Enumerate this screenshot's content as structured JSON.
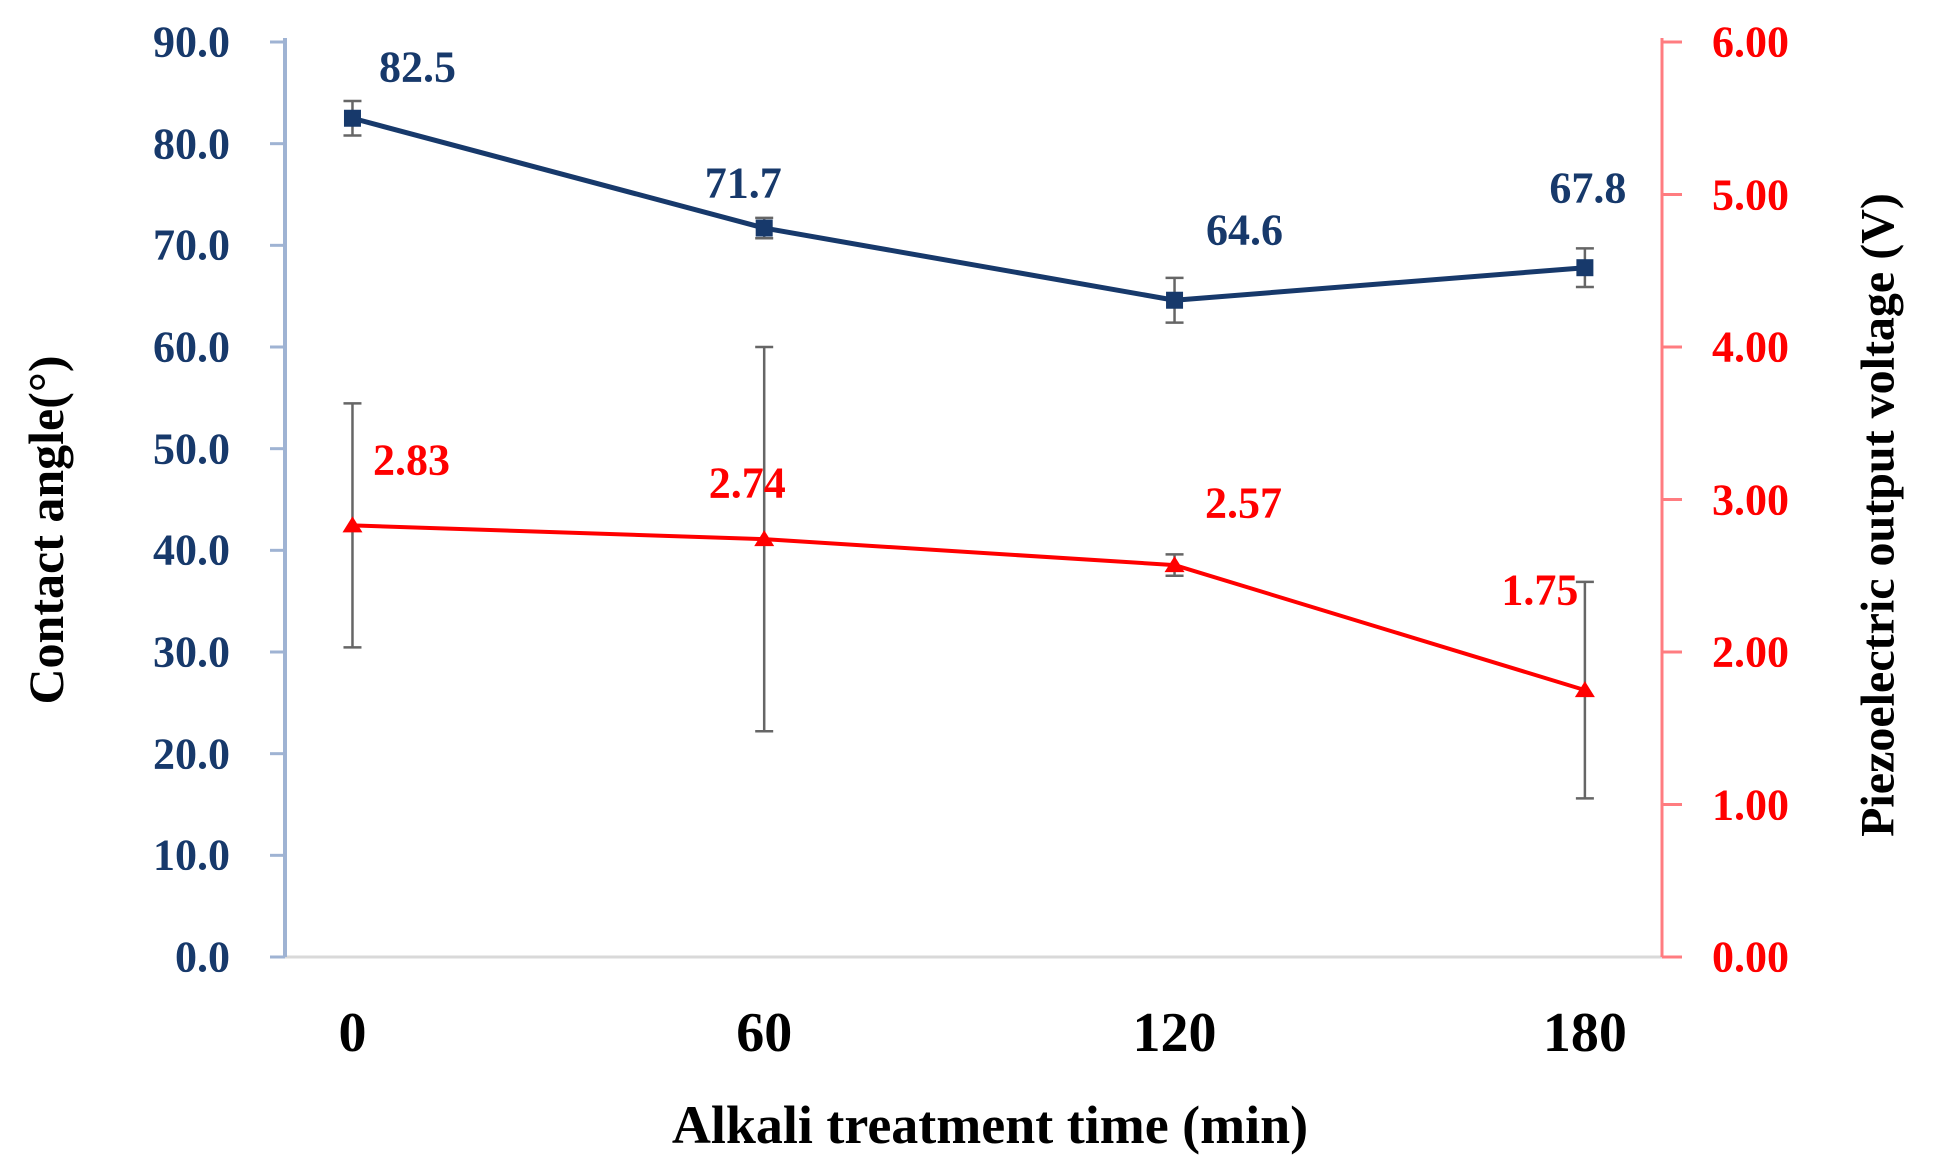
{
  "chart_data": {
    "type": "line",
    "xlabel": "Alkali treatment time (min)",
    "x_categories": [
      "0",
      "60",
      "120",
      "180"
    ],
    "grid": false,
    "legend": "none",
    "left_axis": {
      "label": "Contact angle(°)",
      "min": 0,
      "max": 90,
      "tick_labels": [
        "90.0",
        "80.0",
        "70.0",
        "60.0",
        "50.0",
        "40.0",
        "30.0",
        "20.0",
        "10.0",
        "0.0"
      ],
      "text_color": "#17396B",
      "line_color": "#9FB3D3"
    },
    "right_axis": {
      "label": "Piezoelectric output voltage (V)",
      "min": 0,
      "max": 6,
      "tick_labels": [
        "6.00",
        "5.00",
        "4.00",
        "3.00",
        "2.00",
        "1.00",
        "0.00"
      ],
      "text_color": "#FF0000",
      "line_color": "#FF7C80"
    },
    "x_axis_line_color": "#D9D9D9",
    "error_bar_color": "#666666",
    "series": [
      {
        "name": "Contact angle(°)",
        "axis": "left",
        "color": "#17396B",
        "marker": "square",
        "values": [
          82.5,
          71.7,
          64.6,
          67.8
        ],
        "errors": [
          1.7,
          1.0,
          2.2,
          1.9
        ],
        "labels": [
          "82.5",
          "71.7",
          "64.6",
          "67.8"
        ]
      },
      {
        "name": "Piezoelectric output voltage (V)",
        "axis": "right",
        "color": "#FF0000",
        "marker": "triangle",
        "values": [
          2.83,
          2.74,
          2.57,
          1.75
        ],
        "errors": [
          0.8,
          1.26,
          0.07,
          0.71
        ],
        "labels": [
          "2.83",
          "2.74",
          "2.57",
          "1.75"
        ]
      }
    ]
  }
}
